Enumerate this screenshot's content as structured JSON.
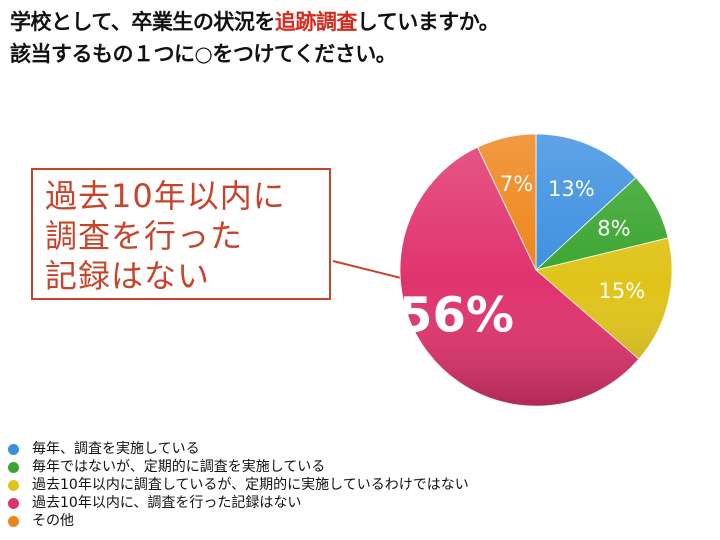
{
  "title": {
    "line1_pre": "学校として、卒業生の状況を",
    "line1_highlight": "追跡調査",
    "line1_post": "していますか。",
    "line2": "該当するもの１つに○をつけてください。"
  },
  "callout": {
    "lines": [
      "過去10年以内に",
      "調査を行った",
      "記録はない"
    ]
  },
  "chart_data": {
    "type": "pie",
    "categories": [
      "毎年、調査を実施している",
      "毎年ではないが、定期的に調査を実施している",
      "過去10年以内に調査しているが、定期的に実施しているわけではない",
      "過去10年以内に、調査を行った記録はない",
      "その他"
    ],
    "values": [
      13,
      8,
      15,
      56,
      7
    ],
    "labels": [
      "13%",
      "8%",
      "15%",
      "56%",
      "7%"
    ],
    "colors": [
      "#3b8fe0",
      "#3aa52f",
      "#e0c41a",
      "#e0336e",
      "#ee8418"
    ],
    "start_angle_deg": 0,
    "direction": "clockwise",
    "legend_position": "bottom-left"
  }
}
